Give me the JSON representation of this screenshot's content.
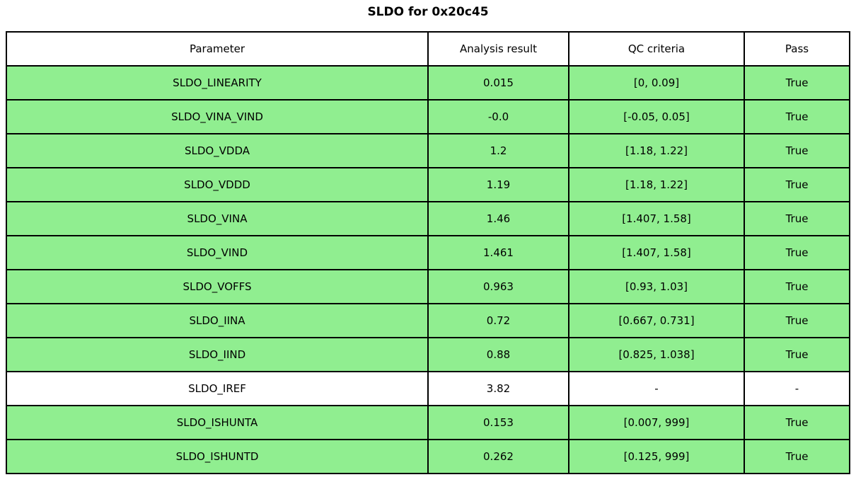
{
  "title": "SLDO for 0x20c45",
  "colors": {
    "pass_row_bg": "#90EE90",
    "neutral_row_bg": "#FFFFFF",
    "border": "#000000",
    "text": "#000000"
  },
  "chart_data": {
    "type": "table",
    "title": "SLDO for 0x20c45",
    "columns": [
      "Parameter",
      "Analysis result",
      "QC criteria",
      "Pass"
    ],
    "rows": [
      {
        "parameter": "SLDO_LINEARITY",
        "result": "0.015",
        "qc": "[0, 0.09]",
        "pass": "True",
        "highlighted": true
      },
      {
        "parameter": "SLDO_VINA_VIND",
        "result": "-0.0",
        "qc": "[-0.05, 0.05]",
        "pass": "True",
        "highlighted": true
      },
      {
        "parameter": "SLDO_VDDA",
        "result": "1.2",
        "qc": "[1.18, 1.22]",
        "pass": "True",
        "highlighted": true
      },
      {
        "parameter": "SLDO_VDDD",
        "result": "1.19",
        "qc": "[1.18, 1.22]",
        "pass": "True",
        "highlighted": true
      },
      {
        "parameter": "SLDO_VINA",
        "result": "1.46",
        "qc": "[1.407, 1.58]",
        "pass": "True",
        "highlighted": true
      },
      {
        "parameter": "SLDO_VIND",
        "result": "1.461",
        "qc": "[1.407, 1.58]",
        "pass": "True",
        "highlighted": true
      },
      {
        "parameter": "SLDO_VOFFS",
        "result": "0.963",
        "qc": "[0.93, 1.03]",
        "pass": "True",
        "highlighted": true
      },
      {
        "parameter": "SLDO_IINA",
        "result": "0.72",
        "qc": "[0.667, 0.731]",
        "pass": "True",
        "highlighted": true
      },
      {
        "parameter": "SLDO_IIND",
        "result": "0.88",
        "qc": "[0.825, 1.038]",
        "pass": "True",
        "highlighted": true
      },
      {
        "parameter": "SLDO_IREF",
        "result": "3.82",
        "qc": "-",
        "pass": "-",
        "highlighted": false
      },
      {
        "parameter": "SLDO_ISHUNTA",
        "result": "0.153",
        "qc": "[0.007, 999]",
        "pass": "True",
        "highlighted": true
      },
      {
        "parameter": "SLDO_ISHUNTD",
        "result": "0.262",
        "qc": "[0.125, 999]",
        "pass": "True",
        "highlighted": true
      }
    ]
  }
}
